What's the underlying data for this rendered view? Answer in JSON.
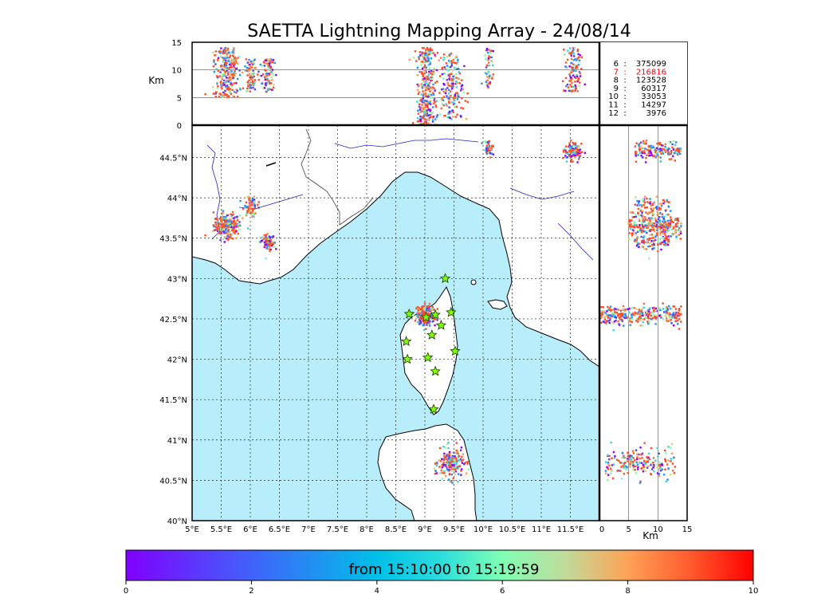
{
  "chart_data": {
    "type": "scatter",
    "title": "SAETTA Lightning Mapping Array - 24/08/14",
    "map": {
      "lon_range": [
        5,
        12
      ],
      "lat_range": [
        40,
        44.9
      ],
      "lon_ticks": [
        5,
        5.5,
        6,
        6.5,
        7,
        7.5,
        8,
        8.5,
        9,
        9.5,
        10,
        10.5,
        11,
        11.5
      ],
      "lon_tick_labels": [
        "5°E",
        "5.5°E",
        "6°E",
        "6.5°E",
        "7°E",
        "7.5°E",
        "8°E",
        "8.5°E",
        "9°E",
        "9.5°E",
        "10°E",
        "10.5°E",
        "11°E",
        "11.5°E"
      ],
      "lat_ticks": [
        40,
        40.5,
        41,
        41.5,
        42,
        42.5,
        43,
        43.5,
        44,
        44.5
      ],
      "lat_tick_labels": [
        "40°N",
        "40.5°N",
        "41°N",
        "41.5°N",
        "42°N",
        "42.5°N",
        "43°N",
        "43.5°N",
        "44°N",
        "44.5°N"
      ],
      "grid": true
    },
    "top_panel": {
      "ylabel": "Km",
      "ylim": [
        0,
        15
      ],
      "y_ticks": [
        0,
        5,
        10,
        15
      ],
      "y_tick_labels": [
        "0",
        "5",
        "10",
        "15"
      ]
    },
    "side_panel": {
      "xlabel": "Km",
      "xlim": [
        0,
        15
      ],
      "x_ticks": [
        0,
        5,
        10,
        15
      ],
      "x_tick_labels": [
        "0",
        "5",
        "10",
        "15"
      ]
    },
    "station_counts": [
      {
        "stations": "6",
        "sep": ":",
        "count": "375099",
        "color": "#000000"
      },
      {
        "stations": "7",
        "sep": ":",
        "count": "216816",
        "color": "#ff0000"
      },
      {
        "stations": "8",
        "sep": ":",
        "count": "123528",
        "color": "#000000"
      },
      {
        "stations": "9",
        "sep": ":",
        "count": "60317",
        "color": "#000000"
      },
      {
        "stations": "10",
        "sep": ":",
        "count": "33053",
        "color": "#000000"
      },
      {
        "stations": "11",
        "sep": ":",
        "count": "14297",
        "color": "#000000"
      },
      {
        "stations": "12",
        "sep": ":",
        "count": "3976",
        "color": "#000000"
      }
    ],
    "colorbar": {
      "label": "from 15:10:00 to 15:19:59",
      "range": [
        0,
        10
      ],
      "ticks": [
        0,
        2,
        4,
        6,
        8,
        10
      ],
      "tick_labels": [
        "0",
        "2",
        "4",
        "6",
        "8",
        "10"
      ]
    },
    "clusters": [
      {
        "lon": 5.6,
        "lat": 43.65,
        "lon_spread": 0.22,
        "lat_spread": 0.15,
        "alt": [
          5,
          14
        ],
        "n": 260
      },
      {
        "lon": 6.0,
        "lat": 43.9,
        "lon_spread": 0.12,
        "lat_spread": 0.12,
        "alt": [
          6,
          12
        ],
        "n": 80
      },
      {
        "lon": 6.3,
        "lat": 43.45,
        "lon_spread": 0.12,
        "lat_spread": 0.1,
        "alt": [
          6,
          12
        ],
        "n": 90
      },
      {
        "lon": 9.02,
        "lat": 42.55,
        "lon_spread": 0.15,
        "lat_spread": 0.12,
        "alt": [
          0,
          14
        ],
        "n": 300
      },
      {
        "lon": 9.45,
        "lat": 40.7,
        "lon_spread": 0.22,
        "lat_spread": 0.18,
        "alt": [
          1,
          13
        ],
        "n": 200
      },
      {
        "lon": 10.1,
        "lat": 44.62,
        "lon_spread": 0.08,
        "lat_spread": 0.09,
        "alt": [
          6,
          14
        ],
        "n": 50
      },
      {
        "lon": 11.55,
        "lat": 44.57,
        "lon_spread": 0.14,
        "lat_spread": 0.1,
        "alt": [
          6,
          14
        ],
        "n": 110
      }
    ],
    "stations": [
      {
        "lon": 9.35,
        "lat": 43.0
      },
      {
        "lon": 8.73,
        "lat": 42.56
      },
      {
        "lon": 9.02,
        "lat": 42.52
      },
      {
        "lon": 9.18,
        "lat": 42.55
      },
      {
        "lon": 9.45,
        "lat": 42.58
      },
      {
        "lon": 9.28,
        "lat": 42.42
      },
      {
        "lon": 9.12,
        "lat": 42.3
      },
      {
        "lon": 8.68,
        "lat": 42.22
      },
      {
        "lon": 9.52,
        "lat": 42.1
      },
      {
        "lon": 9.05,
        "lat": 42.02
      },
      {
        "lon": 8.7,
        "lat": 42.0
      },
      {
        "lon": 9.18,
        "lat": 41.85
      },
      {
        "lon": 9.15,
        "lat": 41.38
      }
    ]
  }
}
